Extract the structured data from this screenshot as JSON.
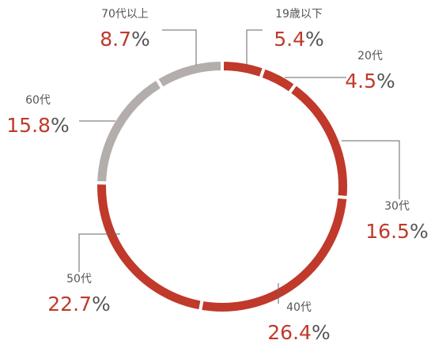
{
  "chart_data": {
    "type": "donut",
    "categories": [
      "19歳以下",
      "20代",
      "30代",
      "40代",
      "50代",
      "60代",
      "70代以上"
    ],
    "values": [
      5.4,
      4.5,
      16.5,
      26.4,
      22.7,
      15.8,
      8.7
    ],
    "value_labels": [
      "5.4%",
      "4.5%",
      "16.5%",
      "26.4%",
      "22.7%",
      "15.8%",
      "8.7%"
    ],
    "colors": [
      "#c0392b",
      "#c0392b",
      "#c0392b",
      "#c0392b",
      "#c0392b",
      "#b3aeac",
      "#b3aeac"
    ]
  }
}
